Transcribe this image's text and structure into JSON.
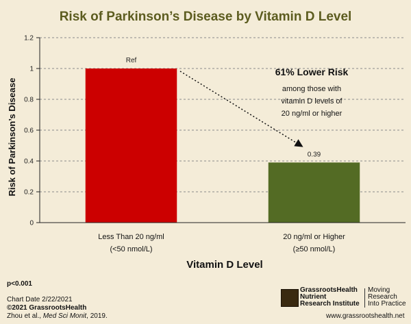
{
  "chart_data": {
    "type": "bar",
    "title": "Risk of Parkinson’s Disease by Vitamin D Level",
    "xlabel": "Vitamin D Level",
    "ylabel": "Risk of Parkinson’s Disease",
    "ylim": [
      0,
      1.2
    ],
    "yticks": [
      "0",
      "0.2",
      "0.4",
      "0.6",
      "0.8",
      "1",
      "1.2"
    ],
    "grid": true,
    "categories": [
      [
        "Less Than 20 ng/ml",
        "(<50 nmol/L)"
      ],
      [
        "20 ng/ml or Higher",
        "(≥50 nmol/L)"
      ]
    ],
    "values": [
      1,
      0.39
    ],
    "bar_colors": [
      "#cc0000",
      "#536b24"
    ],
    "data_labels": [
      "Ref",
      "0.39"
    ],
    "annotation": {
      "headline": "61% Lower Risk",
      "lines": [
        "among those with",
        "vitamin D levels of",
        "20 ng/ml or higher"
      ]
    }
  },
  "footer": {
    "pvalue": "p<0.001",
    "chart_date": "Chart Date 2/22/2021",
    "copyright": "©2021 GrassrootsHealth",
    "citation_authors": "Zhou et al.,",
    "citation_journal": "Med Sci Monit",
    "citation_year": ", 2019.",
    "logo_lines": [
      "GrassrootsHealth",
      "Nutrient",
      "Research Institute"
    ],
    "tag_lines": [
      "Moving",
      "Research",
      "Into Practice"
    ],
    "website": "www.grassrootshealth.net"
  }
}
